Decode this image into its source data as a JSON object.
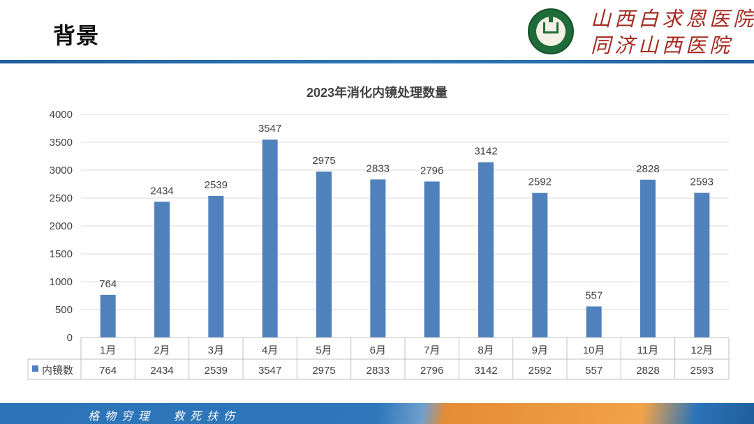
{
  "slide": {
    "title": "背景",
    "hospital_name_line1": "山西白求恩医院",
    "hospital_name_line2": "同济山西医院",
    "footer_motto": "格物穷理  救死扶伤"
  },
  "chart_data": {
    "type": "bar",
    "title": "2023年消化内镜处理数量",
    "categories": [
      "1月",
      "2月",
      "3月",
      "4月",
      "5月",
      "6月",
      "7月",
      "8月",
      "9月",
      "10月",
      "11月",
      "12月"
    ],
    "series": [
      {
        "name": "内镜数",
        "values": [
          764,
          2434,
          2539,
          3547,
          2975,
          2833,
          2796,
          3142,
          2592,
          557,
          2828,
          2593
        ]
      }
    ],
    "ylim": [
      0,
      4000
    ],
    "yticks": [
      0,
      500,
      1000,
      1500,
      2000,
      2500,
      3000,
      3500,
      4000
    ],
    "grid": true,
    "data_labels": true,
    "legend": "data-table",
    "colors": {
      "bar": "#4f81bd",
      "grid": "#d9d9d9",
      "text": "#404040"
    }
  }
}
